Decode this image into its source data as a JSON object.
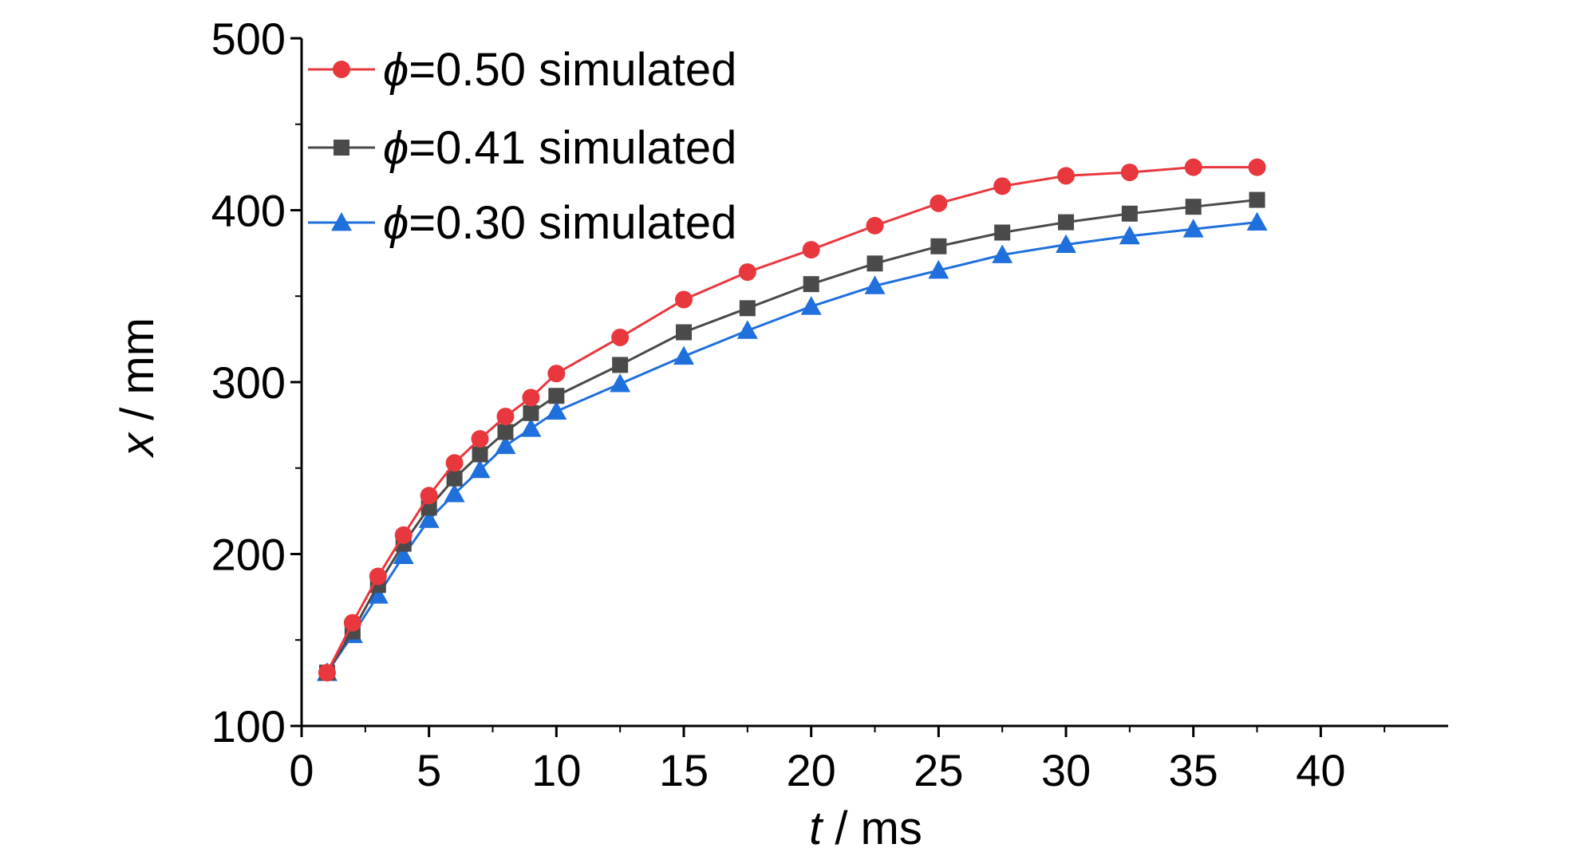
{
  "chart_data": {
    "type": "line",
    "xlabel_var": "t",
    "xlabel_unit": " / ms",
    "ylabel_var": "x",
    "ylabel_unit": " / mm",
    "xlim": [
      0,
      45
    ],
    "ylim": [
      100,
      500
    ],
    "xticks": [
      0,
      5,
      10,
      15,
      20,
      25,
      30,
      35,
      40
    ],
    "yticks": [
      100,
      200,
      300,
      400,
      500
    ],
    "legend_position": "top-left",
    "x": [
      1,
      2,
      3,
      4,
      5,
      6,
      7,
      8,
      9,
      10,
      12.5,
      15,
      17.5,
      20,
      22.5,
      25,
      27.5,
      30,
      32.5,
      35,
      37.5
    ],
    "series": [
      {
        "name": "=0.50 simulated",
        "symbol": "ϕ",
        "color": "#e8383d",
        "marker": "circle",
        "values": [
          131,
          160,
          187,
          211,
          234,
          253,
          267,
          280,
          291,
          305,
          326,
          348,
          364,
          377,
          391,
          404,
          414,
          420,
          422,
          425,
          425
        ]
      },
      {
        "name": "=0.41 simulated",
        "symbol": "ϕ",
        "color": "#4a4a4a",
        "marker": "square",
        "values": [
          131,
          155,
          182,
          206,
          227,
          244,
          258,
          271,
          282,
          292,
          310,
          329,
          343,
          357,
          369,
          379,
          387,
          393,
          398,
          402,
          406
        ]
      },
      {
        "name": "=0.30 simulated",
        "symbol": "ϕ",
        "color": "#1f6fdc",
        "marker": "triangle",
        "values": [
          131,
          153,
          176,
          199,
          220,
          235,
          249,
          263,
          273,
          283,
          299,
          315,
          330,
          344,
          356,
          365,
          374,
          380,
          385,
          389,
          393
        ]
      }
    ]
  }
}
